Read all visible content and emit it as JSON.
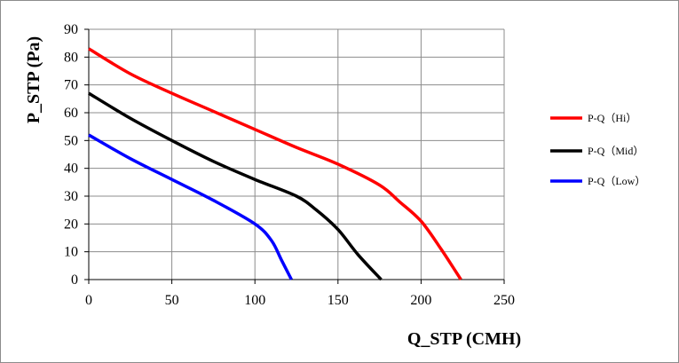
{
  "chart_data": {
    "type": "line",
    "title": "",
    "xlabel": "Q_STP (CMH)",
    "ylabel": "P_STP (Pa)",
    "xlim": [
      0,
      250
    ],
    "ylim": [
      0,
      90
    ],
    "xticks": [
      0,
      50,
      100,
      150,
      200,
      250
    ],
    "yticks": [
      0,
      10,
      20,
      30,
      40,
      50,
      60,
      70,
      80,
      90
    ],
    "xtick_labels": [
      "0",
      "50",
      "100",
      "150",
      "200",
      "250"
    ],
    "ytick_labels": [
      "0",
      "10",
      "20",
      "30",
      "40",
      "50",
      "60",
      "70",
      "80",
      "90"
    ],
    "grid": true,
    "legend_position": "right",
    "series": [
      {
        "name": "P-Q（Hi）",
        "color": "#ff0000",
        "points": [
          [
            0,
            83
          ],
          [
            25,
            74
          ],
          [
            50,
            67
          ],
          [
            75,
            60.5
          ],
          [
            100,
            54
          ],
          [
            125,
            47.5
          ],
          [
            150,
            41.5
          ],
          [
            175,
            34
          ],
          [
            187,
            28
          ],
          [
            200,
            21
          ],
          [
            212,
            11
          ],
          [
            224,
            0
          ]
        ]
      },
      {
        "name": "P-Q（Mid）",
        "color": "#000000",
        "points": [
          [
            0,
            67
          ],
          [
            25,
            58
          ],
          [
            50,
            50
          ],
          [
            75,
            42.5
          ],
          [
            100,
            36
          ],
          [
            125,
            30
          ],
          [
            137,
            25
          ],
          [
            150,
            18
          ],
          [
            162,
            9
          ],
          [
            176,
            0
          ]
        ]
      },
      {
        "name": "P-Q（Low）",
        "color": "#0000ff",
        "points": [
          [
            0,
            52
          ],
          [
            25,
            43.5
          ],
          [
            50,
            36
          ],
          [
            75,
            28.5
          ],
          [
            100,
            20
          ],
          [
            110,
            14
          ],
          [
            116,
            7
          ],
          [
            122,
            0
          ]
        ]
      }
    ]
  }
}
